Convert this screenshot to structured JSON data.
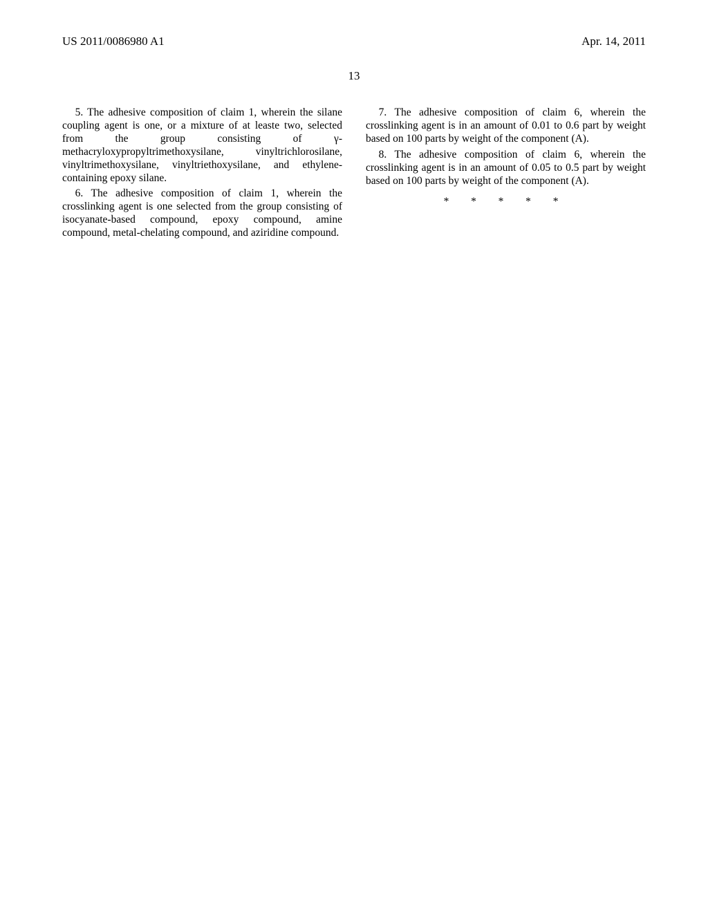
{
  "header": {
    "pub_number": "US 2011/0086980 A1",
    "pub_date": "Apr. 14, 2011"
  },
  "page_number": "13",
  "claims": {
    "c5": "5. The adhesive composition of claim 1, wherein the silane coupling agent is one, or a mixture of at leaste two, selected from the group consisting of γ-methacryloxypropyltrimethoxysilane, vinyltrichlorosilane, vinyltrimethoxysilane, vinyltriethoxysilane, and ethylene-containing epoxy silane.",
    "c6": "6. The adhesive composition of claim 1, wherein the crosslinking agent is one selected from the group consisting of isocyanate-based compound, epoxy compound, amine compound, metal-chelating compound, and aziridine compound.",
    "c7": "7. The adhesive composition of claim 6, wherein the crosslinking agent is in an amount of 0.01 to 0.6 part by weight based on 100 parts by weight of the component (A).",
    "c8": "8. The adhesive composition of claim 6, wherein the crosslinking agent is in an amount of 0.05 to 0.5 part by weight based on 100 parts by weight of the component (A)."
  },
  "stars": "*  *  *  *  *"
}
